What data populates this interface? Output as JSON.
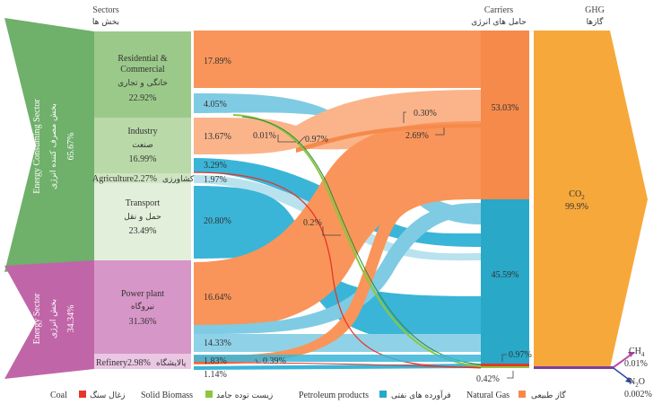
{
  "headers": {
    "sectors_en": "Sectors",
    "sectors_fa": "بخش ها",
    "carriers_en": "Carriers",
    "carriers_fa": "حامل های انرژی",
    "ghg_en": "GHG",
    "ghg_fa": "گازها"
  },
  "groups": {
    "consuming_en": "Energy Consuming Sector",
    "consuming_fa": "بخش مصرف کننده انرژی",
    "consuming_pct": "65.67%",
    "energy_en": "Energy Sector",
    "energy_fa": "بخش انرژی",
    "energy_pct": "34.34%"
  },
  "sectors": [
    {
      "en": "Residential &",
      "en2": "Commercial",
      "fa": "خانگی و تجاری",
      "pct": "22.92%"
    },
    {
      "en": "Industry",
      "fa": "صنعت",
      "pct": "16.99%"
    },
    {
      "en": "Agriculture",
      "pct": "2.27%",
      "fa": "کشاورزی"
    },
    {
      "en": "Transport",
      "fa": "حمل و نقل",
      "pct": "23.49%"
    },
    {
      "en": "Power plant",
      "fa": "نیروگاه",
      "pct": "31.36%"
    },
    {
      "en": "Refinery",
      "pct": "2.98%",
      "fa": "پالایشگاه"
    }
  ],
  "flow_labels": {
    "res_gas": "17.89%",
    "res_pet": "4.05%",
    "ind_gas": "13.67%",
    "ind_coal": "0.01%",
    "ind_bio": "0.97%",
    "ind_pet": "3.29%",
    "agr_pet": "1.97%",
    "agr_gas": "0.2%",
    "tra_pet": "20.80%",
    "pp_gas": "16.64%",
    "pp_pet": "14.33%",
    "ref_gas": "1.83%",
    "ref_pet": "1.14%",
    "ref_coal": "0.39%",
    "car_gas_a": "0.30%",
    "car_gas_b": "2.69%",
    "car_pet_a": "0.97%",
    "car_pet_b": "0.42%"
  },
  "carriers": {
    "gas_pct": "53.03%",
    "pet_pct": "45.59%"
  },
  "ghg": {
    "co2_label": "CO",
    "co2_sub": "2",
    "co2_pct": "99.9%",
    "ch4_label": "CH",
    "ch4_sub": "4",
    "ch4_pct": "0.01%",
    "n2o_label": "N",
    "n2o_sub": "2",
    "n2o_tail": "O",
    "n2o_pct": "0.002%"
  },
  "legend": [
    {
      "en": "Coal",
      "fa": "زغال سنگ",
      "color": "#e8352b"
    },
    {
      "en": "Solid Biomass",
      "fa": "زیست توده جامد",
      "color": "#8dc63f"
    },
    {
      "en": "Petroleum products",
      "fa": "فرآورده های نفتی",
      "color": "#29a8c8"
    },
    {
      "en": "Natural Gas",
      "fa": "گاز طبیعی",
      "color": "#f58a4b"
    }
  ],
  "colors": {
    "gas": "#f9955a",
    "gas_light": "#fbb48a",
    "pet": "#3ab5d8",
    "pet_light": "#8fd2e8",
    "consuming_group": "#6fb06a",
    "energy_group": "#c066a8",
    "co2": "#f7a83a"
  }
}
